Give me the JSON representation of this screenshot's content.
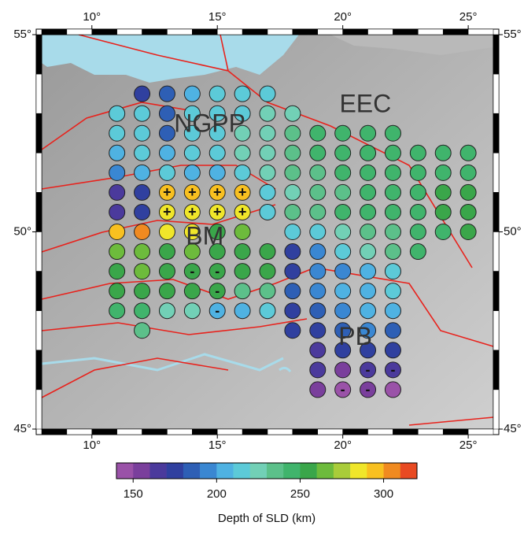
{
  "map": {
    "xlim": [
      8,
      26
    ],
    "ylim": [
      45,
      55
    ],
    "xticks": [
      {
        "value": 10,
        "label": "10°"
      },
      {
        "value": 15,
        "label": "15°"
      },
      {
        "value": 20,
        "label": "20°"
      },
      {
        "value": 25,
        "label": "25°"
      }
    ],
    "yticks": [
      {
        "value": 45,
        "label": "45°"
      },
      {
        "value": 50,
        "label": "50°"
      },
      {
        "value": 55,
        "label": "55°"
      }
    ],
    "regions": [
      {
        "name": "NGPP",
        "lon": 14.7,
        "lat": 52.7
      },
      {
        "name": "EEC",
        "lon": 20.9,
        "lat": 53.2
      },
      {
        "name": "BM",
        "lon": 14.5,
        "lat": 49.85
      },
      {
        "name": "PB",
        "lon": 20.5,
        "lat": 47.3
      }
    ],
    "points": [
      [
        12,
        53.5,
        175
      ],
      [
        13,
        53.5,
        185
      ],
      [
        14,
        53.5,
        205
      ],
      [
        15,
        53.5,
        210
      ],
      [
        16,
        53.5,
        210
      ],
      [
        17,
        53.5,
        210
      ],
      [
        11,
        53,
        210
      ],
      [
        12,
        53,
        210
      ],
      [
        13,
        53,
        185
      ],
      [
        14,
        53,
        210
      ],
      [
        15,
        53,
        210
      ],
      [
        16,
        53,
        210
      ],
      [
        17,
        53,
        220
      ],
      [
        18,
        53,
        225
      ],
      [
        11,
        52.5,
        210
      ],
      [
        12,
        52.5,
        210
      ],
      [
        13,
        52.5,
        185
      ],
      [
        14,
        52.5,
        210
      ],
      [
        15,
        52.5,
        215
      ],
      [
        16,
        52.5,
        225
      ],
      [
        17,
        52.5,
        225
      ],
      [
        18,
        52.5,
        235
      ],
      [
        19,
        52.5,
        245
      ],
      [
        20,
        52.5,
        245
      ],
      [
        21,
        52.5,
        245
      ],
      [
        22,
        52.5,
        245
      ],
      [
        11,
        52,
        205
      ],
      [
        12,
        52,
        210
      ],
      [
        13,
        52,
        205
      ],
      [
        14,
        52,
        210
      ],
      [
        15,
        52,
        210
      ],
      [
        16,
        52,
        220
      ],
      [
        17,
        52,
        225
      ],
      [
        18,
        52,
        235
      ],
      [
        19,
        52,
        245
      ],
      [
        20,
        52,
        245
      ],
      [
        21,
        52,
        245
      ],
      [
        22,
        52,
        245
      ],
      [
        23,
        52,
        240
      ],
      [
        24,
        52,
        240
      ],
      [
        25,
        52,
        245
      ],
      [
        11,
        51.5,
        195
      ],
      [
        12,
        51.5,
        205
      ],
      [
        13,
        51.5,
        210
      ],
      [
        14,
        51.5,
        205
      ],
      [
        15,
        51.5,
        205
      ],
      [
        16,
        51.5,
        210
      ],
      [
        17,
        51.5,
        220
      ],
      [
        18,
        51.5,
        230
      ],
      [
        19,
        51.5,
        235
      ],
      [
        20,
        51.5,
        240
      ],
      [
        21,
        51.5,
        240
      ],
      [
        22,
        51.5,
        240
      ],
      [
        23,
        51.5,
        245
      ],
      [
        24,
        51.5,
        245
      ],
      [
        25,
        51.5,
        245
      ],
      [
        11,
        51,
        165
      ],
      [
        12,
        51,
        175
      ],
      [
        13,
        51,
        290,
        "+"
      ],
      [
        14,
        51,
        290,
        "+"
      ],
      [
        15,
        51,
        290,
        "+"
      ],
      [
        16,
        51,
        290,
        "+"
      ],
      [
        17,
        51,
        210
      ],
      [
        18,
        51,
        225
      ],
      [
        19,
        51,
        230
      ],
      [
        20,
        51,
        235
      ],
      [
        21,
        51,
        240
      ],
      [
        22,
        51,
        240
      ],
      [
        23,
        51,
        240
      ],
      [
        24,
        51,
        250
      ],
      [
        25,
        51,
        250
      ],
      [
        11,
        50.5,
        165
      ],
      [
        12,
        50.5,
        175
      ],
      [
        13,
        50.5,
        285,
        "+"
      ],
      [
        14,
        50.5,
        285,
        "+"
      ],
      [
        15,
        50.5,
        285,
        "+"
      ],
      [
        16,
        50.5,
        285,
        "+"
      ],
      [
        17,
        50.5,
        215
      ],
      [
        18,
        50.5,
        230
      ],
      [
        19,
        50.5,
        230
      ],
      [
        20,
        50.5,
        240
      ],
      [
        21,
        50.5,
        240
      ],
      [
        22,
        50.5,
        245
      ],
      [
        23,
        50.5,
        245
      ],
      [
        24,
        50.5,
        250
      ],
      [
        25,
        50.5,
        250
      ],
      [
        11,
        50,
        295
      ],
      [
        12,
        50,
        305
      ],
      [
        13,
        50,
        280
      ],
      [
        14,
        50,
        280
      ],
      [
        15,
        50,
        255
      ],
      [
        16,
        50,
        265
      ],
      [
        18,
        50,
        210
      ],
      [
        19,
        50,
        215
      ],
      [
        20,
        50,
        225
      ],
      [
        21,
        50,
        230
      ],
      [
        22,
        50,
        235
      ],
      [
        23,
        50,
        245
      ],
      [
        24,
        50,
        245
      ],
      [
        25,
        50,
        250
      ],
      [
        11,
        49.5,
        265
      ],
      [
        12,
        49.5,
        265
      ],
      [
        13,
        49.5,
        255
      ],
      [
        14,
        49.5,
        265
      ],
      [
        15,
        49.5,
        255
      ],
      [
        16,
        49.5,
        250
      ],
      [
        17,
        49.5,
        250
      ],
      [
        18,
        49.5,
        170
      ],
      [
        19,
        49.5,
        195
      ],
      [
        20,
        49.5,
        215
      ],
      [
        21,
        49.5,
        220
      ],
      [
        22,
        49.5,
        230
      ],
      [
        23,
        49.5,
        240
      ],
      [
        11,
        49,
        255
      ],
      [
        12,
        49,
        260
      ],
      [
        13,
        49,
        250
      ],
      [
        14,
        49,
        250,
        "-"
      ],
      [
        15,
        49,
        250,
        "-"
      ],
      [
        16,
        49,
        255
      ],
      [
        17,
        49,
        250
      ],
      [
        18,
        49,
        175
      ],
      [
        19,
        49,
        190
      ],
      [
        20,
        49,
        195
      ],
      [
        21,
        49,
        205
      ],
      [
        22,
        49,
        215
      ],
      [
        11,
        48.5,
        255
      ],
      [
        12,
        48.5,
        255
      ],
      [
        13,
        48.5,
        250
      ],
      [
        14,
        48.5,
        250
      ],
      [
        15,
        48.5,
        250,
        "-"
      ],
      [
        16,
        48.5,
        235
      ],
      [
        17,
        48.5,
        235
      ],
      [
        18,
        48.5,
        180
      ],
      [
        19,
        48.5,
        190
      ],
      [
        20,
        48.5,
        200
      ],
      [
        21,
        48.5,
        205
      ],
      [
        22,
        48.5,
        210
      ],
      [
        11,
        48,
        245
      ],
      [
        12,
        48,
        245
      ],
      [
        13,
        48,
        225
      ],
      [
        14,
        48,
        225
      ],
      [
        15,
        48,
        205,
        "-"
      ],
      [
        16,
        48,
        205
      ],
      [
        17,
        48,
        210
      ],
      [
        18,
        48,
        175
      ],
      [
        19,
        48,
        185
      ],
      [
        20,
        48,
        190
      ],
      [
        21,
        48,
        200
      ],
      [
        22,
        48,
        205
      ],
      [
        12,
        47.5,
        230
      ],
      [
        18,
        47.5,
        175
      ],
      [
        19,
        47.5,
        175
      ],
      [
        20,
        47.5,
        185
      ],
      [
        21,
        47.5,
        190
      ],
      [
        22,
        47.5,
        185
      ],
      [
        19,
        47,
        165
      ],
      [
        20,
        47,
        170
      ],
      [
        21,
        47,
        175
      ],
      [
        22,
        47,
        175
      ],
      [
        19,
        46.5,
        165
      ],
      [
        20,
        46.5,
        155
      ],
      [
        21,
        46.5,
        165,
        "-"
      ],
      [
        22,
        46.5,
        165,
        "-"
      ],
      [
        19,
        46,
        150
      ],
      [
        20,
        46,
        145,
        "-"
      ],
      [
        21,
        46,
        150,
        "-"
      ],
      [
        22,
        46,
        145
      ]
    ]
  },
  "colorbar": {
    "lim": [
      140,
      320
    ],
    "ticks": [
      150,
      200,
      250,
      300
    ],
    "label": "Depth of SLD (km)",
    "colors": [
      "#9a52a8",
      "#7a3f9c",
      "#4b3a9c",
      "#30409f",
      "#2e5fb5",
      "#3a87d2",
      "#4fb2e2",
      "#5ccad8",
      "#72d0b6",
      "#5cc08a",
      "#40b46c",
      "#3aa64a",
      "#6dbb3c",
      "#a9cc3a",
      "#f0e62a",
      "#f8c020",
      "#f08a20",
      "#e84a22"
    ]
  }
}
